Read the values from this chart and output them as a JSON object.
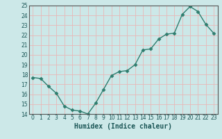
{
  "x": [
    0,
    1,
    2,
    3,
    4,
    5,
    6,
    7,
    8,
    9,
    10,
    11,
    12,
    13,
    14,
    15,
    16,
    17,
    18,
    19,
    20,
    21,
    22,
    23
  ],
  "y": [
    17.7,
    17.6,
    16.8,
    16.1,
    14.8,
    14.4,
    14.3,
    14.0,
    15.1,
    16.5,
    17.9,
    18.3,
    18.4,
    19.0,
    20.5,
    20.6,
    21.6,
    22.1,
    22.2,
    24.1,
    24.9,
    24.4,
    23.1,
    22.2
  ],
  "line_color": "#2e7d6e",
  "marker": "D",
  "marker_size": 2.5,
  "bg_color": "#cce8e8",
  "grid_color": "#e8b8b8",
  "xlabel": "Humidex (Indice chaleur)",
  "ylim": [
    14,
    25
  ],
  "xlim": [
    -0.5,
    23.5
  ],
  "yticks": [
    14,
    15,
    16,
    17,
    18,
    19,
    20,
    21,
    22,
    23,
    24,
    25
  ],
  "xticks": [
    0,
    1,
    2,
    3,
    4,
    5,
    6,
    7,
    8,
    9,
    10,
    11,
    12,
    13,
    14,
    15,
    16,
    17,
    18,
    19,
    20,
    21,
    22,
    23
  ]
}
